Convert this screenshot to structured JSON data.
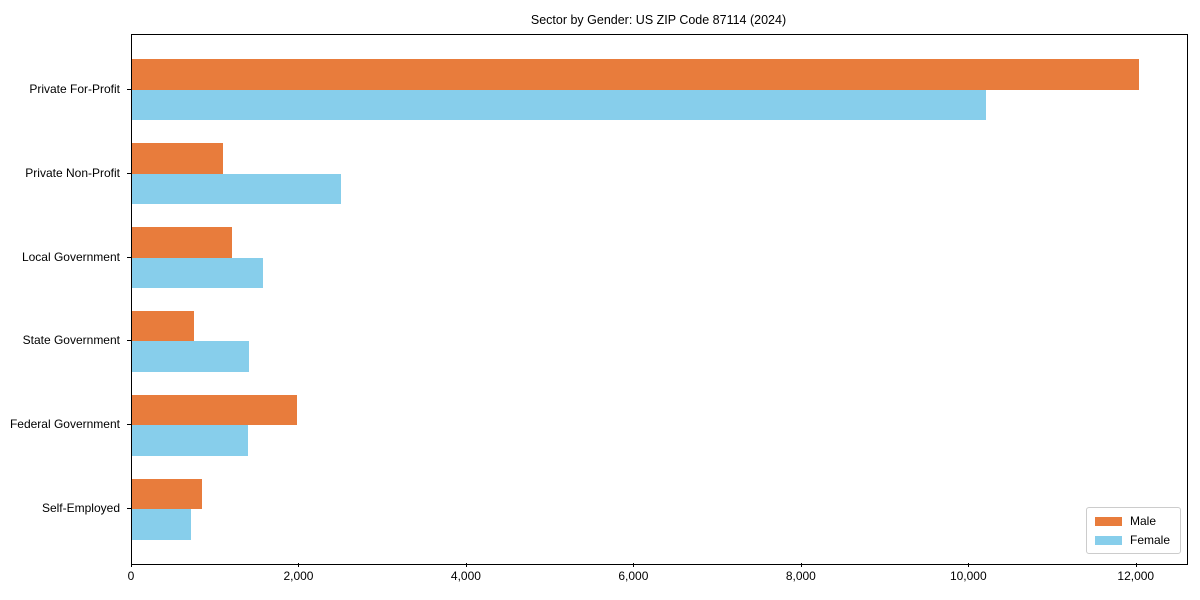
{
  "chart_data": {
    "type": "bar",
    "orientation": "horizontal",
    "title": "Sector by Gender: US ZIP Code 87114 (2024)",
    "categories": [
      "Private For-Profit",
      "Private Non-Profit",
      "Local Government",
      "State Government",
      "Federal Government",
      "Self-Employed"
    ],
    "series": [
      {
        "name": "Male",
        "color": "#E87C3C",
        "values": [
          12030,
          1090,
          1200,
          740,
          1970,
          840
        ]
      },
      {
        "name": "Female",
        "color": "#87CEEB",
        "values": [
          10200,
          2500,
          1570,
          1400,
          1380,
          710
        ]
      }
    ],
    "xlabel": "",
    "ylabel": "",
    "xlim": [
      0,
      12600
    ],
    "x_ticks": [
      0,
      2000,
      4000,
      6000,
      8000,
      10000,
      12000
    ],
    "x_tick_labels": [
      "0",
      "2,000",
      "4,000",
      "6,000",
      "8,000",
      "10,000",
      "12,000"
    ],
    "grid": false,
    "legend_position": "lower right",
    "legend_entries": [
      "Male",
      "Female"
    ]
  }
}
